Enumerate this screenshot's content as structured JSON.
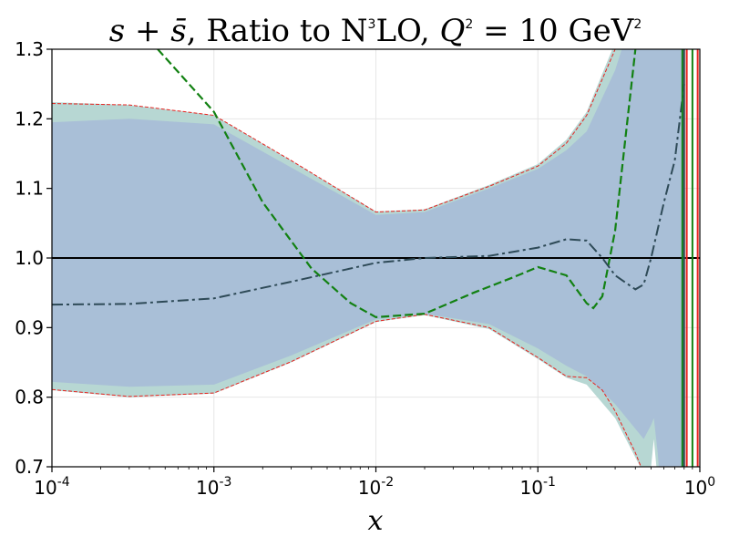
{
  "chart_data": {
    "type": "area",
    "title": {
      "prefix": "s + s̄",
      "middle": ", Ratio to N",
      "middle_sup": "3",
      "middle_end": "LO, ",
      "q": "Q",
      "q_sup": "2",
      "equals": " = 10 GeV",
      "gev_sup": "2"
    },
    "xlabel": "x",
    "ylabel": "",
    "xscale": "log",
    "xlim": [
      0.0001,
      1
    ],
    "ylim": [
      0.7,
      1.3
    ],
    "grid": true,
    "x_ticks": [
      {
        "value": 0.0001,
        "base": "10",
        "exp": "-4"
      },
      {
        "value": 0.001,
        "base": "10",
        "exp": "-3"
      },
      {
        "value": 0.01,
        "base": "10",
        "exp": "-2"
      },
      {
        "value": 0.1,
        "base": "10",
        "exp": "-1"
      },
      {
        "value": 1,
        "base": "10",
        "exp": "0"
      }
    ],
    "y_ticks": [
      {
        "value": 0.7,
        "label": "0.7"
      },
      {
        "value": 0.8,
        "label": "0.8"
      },
      {
        "value": 0.9,
        "label": "0.9"
      },
      {
        "value": 1.0,
        "label": "1.0"
      },
      {
        "value": 1.1,
        "label": "1.1"
      },
      {
        "value": 1.2,
        "label": "1.2"
      },
      {
        "value": 1.3,
        "label": "1.3"
      }
    ],
    "reference_line": {
      "value": 1.0,
      "color": "#000000"
    },
    "series": [
      {
        "name": "outer-band",
        "kind": "band",
        "fill": "#b7d7d3",
        "x": [
          0.0001,
          0.0003,
          0.001,
          0.003,
          0.01,
          0.02,
          0.05,
          0.1,
          0.15,
          0.2,
          0.3,
          0.45,
          0.5,
          0.52,
          0.55,
          0.6,
          0.7,
          0.8
        ],
        "upper": [
          1.224,
          1.22,
          1.205,
          1.14,
          1.067,
          1.07,
          1.105,
          1.135,
          1.17,
          1.21,
          1.31,
          1.4,
          1.4,
          1.4,
          1.4,
          1.4,
          1.4,
          1.4
        ],
        "lower": [
          0.81,
          0.8,
          0.805,
          0.85,
          0.908,
          0.918,
          0.898,
          0.855,
          0.828,
          0.818,
          0.77,
          0.69,
          0.7,
          0.74,
          0.68,
          0.6,
          0.6,
          0.6
        ]
      },
      {
        "name": "inner-band",
        "kind": "band",
        "fill": "#a9bfd7",
        "x": [
          0.0001,
          0.0003,
          0.001,
          0.003,
          0.01,
          0.02,
          0.05,
          0.1,
          0.15,
          0.2,
          0.3,
          0.45,
          0.5,
          0.52,
          0.55,
          0.6,
          0.7,
          0.8
        ],
        "upper": [
          1.195,
          1.2,
          1.192,
          1.13,
          1.062,
          1.066,
          1.1,
          1.128,
          1.155,
          1.182,
          1.27,
          1.4,
          1.4,
          1.4,
          1.4,
          1.4,
          1.4,
          1.4
        ],
        "lower": [
          0.822,
          0.815,
          0.818,
          0.86,
          0.912,
          0.92,
          0.905,
          0.87,
          0.845,
          0.83,
          0.79,
          0.74,
          0.76,
          0.77,
          0.72,
          0.6,
          0.6,
          0.6
        ]
      },
      {
        "name": "band-edge-upper",
        "kind": "line",
        "color": "#e8231f",
        "dash": "4,2",
        "width": 1,
        "x": [
          0.0001,
          0.0003,
          0.001,
          0.003,
          0.01,
          0.02,
          0.05,
          0.1,
          0.15,
          0.2,
          0.3,
          0.4
        ],
        "y": [
          1.222,
          1.22,
          1.205,
          1.14,
          1.066,
          1.069,
          1.103,
          1.132,
          1.165,
          1.205,
          1.3,
          1.4
        ]
      },
      {
        "name": "band-edge-lower",
        "kind": "line",
        "color": "#e8231f",
        "dash": "4,2",
        "width": 1,
        "x": [
          0.0001,
          0.0003,
          0.001,
          0.003,
          0.01,
          0.02,
          0.05,
          0.1,
          0.15,
          0.2,
          0.25,
          0.3,
          0.4,
          0.45
        ],
        "y": [
          0.811,
          0.801,
          0.806,
          0.851,
          0.909,
          0.919,
          0.9,
          0.857,
          0.83,
          0.828,
          0.81,
          0.78,
          0.72,
          0.69
        ]
      },
      {
        "name": "green-dashed",
        "kind": "line",
        "color": "#128112",
        "dash": "9,4",
        "width": 2.2,
        "x": [
          0.00045,
          0.001,
          0.002,
          0.004,
          0.007,
          0.01,
          0.02,
          0.04,
          0.07,
          0.1,
          0.15,
          0.2,
          0.22,
          0.25,
          0.3,
          0.35,
          0.4,
          0.5
        ],
        "y": [
          1.3,
          1.21,
          1.08,
          0.985,
          0.935,
          0.915,
          0.92,
          0.95,
          0.972,
          0.987,
          0.975,
          0.935,
          0.928,
          0.945,
          1.04,
          1.18,
          1.3,
          1.4
        ]
      },
      {
        "name": "dashdot-central",
        "kind": "line",
        "color": "#2e4a57",
        "dash": "12,4,3,4",
        "width": 2,
        "x": [
          0.0001,
          0.0003,
          0.001,
          0.003,
          0.01,
          0.02,
          0.05,
          0.1,
          0.15,
          0.2,
          0.25,
          0.3,
          0.4,
          0.45,
          0.5,
          0.6,
          0.7,
          0.8
        ],
        "y": [
          0.933,
          0.934,
          0.942,
          0.966,
          0.993,
          1.0,
          1.003,
          1.015,
          1.027,
          1.025,
          1.0,
          0.975,
          0.955,
          0.962,
          1.0,
          1.08,
          1.14,
          1.25
        ]
      }
    ]
  }
}
